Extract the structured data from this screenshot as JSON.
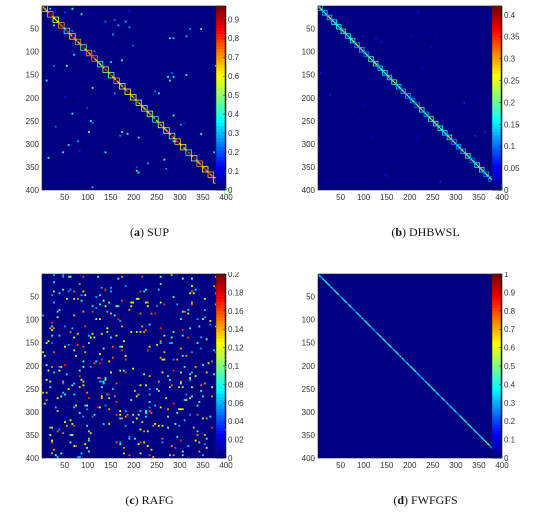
{
  "chart_data": [
    {
      "type": "heatmap",
      "letter": "a",
      "name": "SUP",
      "xticks": [
        "50",
        "100",
        "150",
        "200",
        "250",
        "300",
        "350",
        "400"
      ],
      "yticks": [
        "50",
        "100",
        "150",
        "200",
        "250",
        "300",
        "350",
        "400"
      ],
      "xlim": [
        1,
        400
      ],
      "ylim": [
        1,
        400
      ],
      "colorbar_ticks": [
        "0",
        "0.1",
        "0.2",
        "0.3",
        "0.4",
        "0.5",
        "0.6",
        "0.7",
        "0.8",
        "0.9"
      ],
      "colorbar_range": [
        0,
        0.97
      ],
      "diagonal_value": 0.75,
      "noise_max": 0.45,
      "noise_density": 0.006,
      "block_size": 12
    },
    {
      "type": "heatmap",
      "letter": "b",
      "name": "DHBWSL",
      "xticks": [
        "50",
        "100",
        "150",
        "200",
        "250",
        "300",
        "350",
        "400"
      ],
      "yticks": [
        "50",
        "100",
        "150",
        "200",
        "250",
        "300",
        "350",
        "400"
      ],
      "xlim": [
        1,
        400
      ],
      "ylim": [
        1,
        400
      ],
      "colorbar_ticks": [
        "0",
        "0.05",
        "0.1",
        "0.15",
        "0.2",
        "0.25",
        "0.3",
        "0.35",
        "0.4"
      ],
      "colorbar_range": [
        0,
        0.42
      ],
      "diagonal_value": 0.2,
      "noise_max": 0.08,
      "noise_density": 0.003,
      "block_size": 10
    },
    {
      "type": "heatmap",
      "letter": "c",
      "name": "RAFG",
      "xticks": [
        "50",
        "100",
        "150",
        "200",
        "250",
        "300",
        "350",
        "400"
      ],
      "yticks": [
        "50",
        "100",
        "150",
        "200",
        "250",
        "300",
        "350",
        "400"
      ],
      "xlim": [
        1,
        400
      ],
      "ylim": [
        1,
        400
      ],
      "colorbar_ticks": [
        "0",
        "0.02",
        "0.04",
        "0.06",
        "0.08",
        "0.1",
        "0.12",
        "0.14",
        "0.16",
        "0.18",
        "0.2"
      ],
      "colorbar_range": [
        0,
        0.2
      ],
      "diagonal_value": 0.0,
      "noise_max": 0.17,
      "noise_density": 0.05,
      "block_size": 0
    },
    {
      "type": "heatmap",
      "letter": "d",
      "name": "FWFGFS",
      "xticks": [
        "50",
        "100",
        "150",
        "200",
        "250",
        "300",
        "350",
        "400"
      ],
      "yticks": [
        "50",
        "100",
        "150",
        "200",
        "250",
        "300",
        "350",
        "400"
      ],
      "xlim": [
        1,
        400
      ],
      "ylim": [
        1,
        400
      ],
      "colorbar_ticks": [
        "0",
        "0.1",
        "0.2",
        "0.3",
        "0.4",
        "0.5",
        "0.6",
        "0.7",
        "0.8",
        "0.9",
        "1"
      ],
      "colorbar_range": [
        0,
        1
      ],
      "diagonal_value": 0.35,
      "noise_max": 0.0,
      "noise_density": 0.0,
      "block_size": 0
    }
  ]
}
